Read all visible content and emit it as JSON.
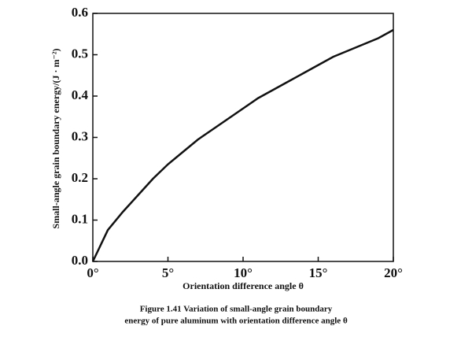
{
  "chart_data": {
    "type": "line",
    "x_label": "Orientation difference angle θ",
    "y_label": "Small-angle grain boundary energy/(J · m⁻²)",
    "caption": [
      "Figure 1.41 Variation of small-angle grain boundary",
      "energy of pure aluminum with orientation difference angle θ"
    ],
    "x": [
      0,
      1,
      2,
      3,
      4,
      5,
      6,
      7,
      8,
      9,
      10,
      11,
      12,
      13,
      14,
      15,
      16,
      17,
      18,
      19,
      20
    ],
    "series": [
      {
        "color": "#111111",
        "values": [
          0,
          0.076,
          0.12,
          0.16,
          0.2,
          0.235,
          0.265,
          0.295,
          0.32,
          0.345,
          0.37,
          0.395,
          0.415,
          0.435,
          0.455,
          0.475,
          0.495,
          0.51,
          0.525,
          0.54,
          0.56
        ]
      }
    ],
    "xlim": [
      0,
      20
    ],
    "xticks": [
      {
        "value": 0,
        "label": "0°"
      },
      {
        "value": 5,
        "label": "5°"
      },
      {
        "value": 10,
        "label": "10°"
      },
      {
        "value": 15,
        "label": "15°"
      },
      {
        "value": 20,
        "label": "20°"
      }
    ],
    "ylim": [
      0,
      0.6
    ],
    "yticks": [
      {
        "value": 0,
        "label": "0.0"
      },
      0.1,
      0.2,
      0.3,
      0.4,
      0.5,
      0.6
    ]
  }
}
